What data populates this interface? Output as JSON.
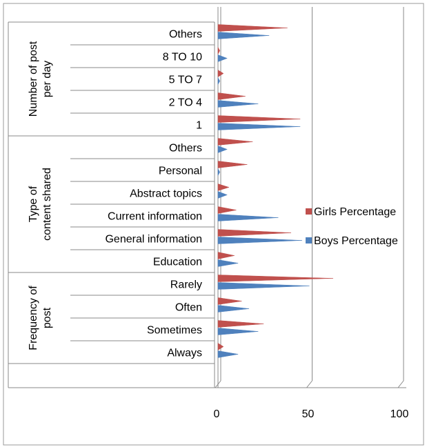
{
  "chart_data": {
    "type": "bar",
    "orientation": "horizontal",
    "categories": [
      "Always",
      "Sometimes",
      "Often",
      "Rarely",
      "Education",
      "General information",
      "Current information",
      "Abstract topics",
      "Personal",
      "Others",
      "1",
      "2 TO 4",
      "5 TO 7",
      "8 TO 10",
      "Others"
    ],
    "groups": [
      {
        "label": "Frequency of post",
        "categories": [
          "Always",
          "Sometimes",
          "Often",
          "Rarely"
        ]
      },
      {
        "label": "Type of content shared",
        "categories": [
          "Education",
          "General information",
          "Current information",
          "Abstract topics",
          "Personal",
          "Others"
        ]
      },
      {
        "label": "Number of post per day",
        "categories": [
          "1",
          "2 TO 4",
          "5 TO 7",
          "8 TO 10",
          "Others"
        ]
      }
    ],
    "series": [
      {
        "name": "Girls Percentage",
        "color": "#c0504d",
        "values": [
          3,
          25,
          13,
          63,
          9,
          40,
          10,
          6,
          16,
          19,
          45,
          15,
          3,
          1,
          38
        ]
      },
      {
        "name": "Boys Percentage",
        "color": "#4f81bd",
        "values": [
          11,
          22,
          17,
          50,
          11,
          46,
          33,
          5,
          1,
          5,
          45,
          22,
          1,
          5,
          28
        ]
      }
    ],
    "xticks": [
      "0",
      "50",
      "100"
    ],
    "xlim": [
      0,
      100
    ],
    "title": "",
    "xlabel": "",
    "ylabel": "",
    "grid": true,
    "legend": "right"
  }
}
